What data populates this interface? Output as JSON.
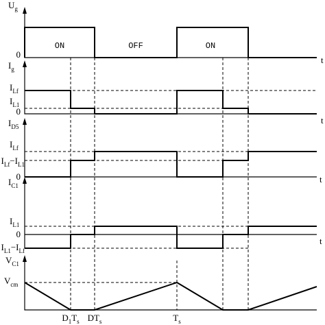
{
  "axis_labels": [
    [
      "U",
      "g"
    ],
    [
      "I",
      "g"
    ],
    [
      "I",
      "D5"
    ],
    [
      "I",
      "C1"
    ],
    [
      "V",
      "C1"
    ]
  ],
  "level_labels": [
    [
      "0"
    ],
    [
      "I",
      "Lf"
    ],
    [
      "I",
      "L1"
    ],
    [
      "0"
    ],
    [
      "I",
      "Lf"
    ],
    [
      "I",
      "Lf",
      "−I",
      "L1"
    ],
    [
      "0"
    ],
    [
      "I",
      "L1"
    ],
    [
      "0"
    ],
    [
      "I",
      "L1",
      "−I",
      "Lf"
    ],
    [
      "V",
      "cm"
    ]
  ],
  "state_labels": [
    "ON",
    "OFF",
    "ON"
  ],
  "time_labels": [
    [
      "D",
      "1",
      "T",
      "s"
    ],
    [
      "DT",
      "s"
    ],
    [
      "T",
      "s"
    ]
  ],
  "t_labels": [
    "t",
    "t",
    "t",
    "t"
  ]
}
